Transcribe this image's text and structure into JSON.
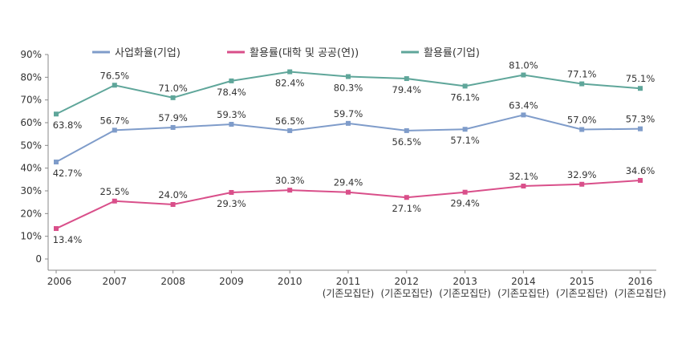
{
  "chart_data": {
    "type": "line",
    "title": "",
    "xlabel": "",
    "ylabel": "",
    "ylim": [
      0,
      90
    ],
    "y_ticks": [
      "0",
      "10%",
      "20%",
      "30%",
      "40%",
      "50%",
      "60%",
      "70%",
      "80%",
      "90%"
    ],
    "grid": false,
    "legend_position": "top",
    "categories": [
      "2006",
      "2007",
      "2008",
      "2009",
      "2010",
      "2011",
      "2012",
      "2013",
      "2014",
      "2015",
      "2016"
    ],
    "category_sublabels": [
      "",
      "",
      "",
      "",
      "",
      "(기존모집단)",
      "(기존모집단)",
      "(기존모집단)",
      "(기존모집단)",
      "(기존모집단)",
      "(기존모집단)"
    ],
    "series": [
      {
        "name": "사업화율(기업)",
        "color": "#7f9cca",
        "values": [
          42.7,
          56.7,
          57.9,
          59.3,
          56.5,
          59.7,
          56.5,
          57.1,
          63.4,
          57.0,
          57.3
        ],
        "labels": [
          "42.7%",
          "56.7%",
          "57.9%",
          "59.3%",
          "56.5%",
          "59.7%",
          "56.5%",
          "57.1%",
          "63.4%",
          "57.0%",
          "57.3%"
        ]
      },
      {
        "name": "활용률(대학 및 공공(연))",
        "color": "#d94f8a",
        "values": [
          13.4,
          25.5,
          24.0,
          29.3,
          30.3,
          29.4,
          27.1,
          29.4,
          32.1,
          32.9,
          34.6
        ],
        "labels": [
          "13.4%",
          "25.5%",
          "24.0%",
          "29.3%",
          "30.3%",
          "29.4%",
          "27.1%",
          "29.4%",
          "32.1%",
          "32.9%",
          "34.6%"
        ]
      },
      {
        "name": "활용률(기업)",
        "color": "#5fa69a",
        "values": [
          63.8,
          76.5,
          71.0,
          78.4,
          82.4,
          80.3,
          79.4,
          76.1,
          81.0,
          77.1,
          75.1
        ],
        "labels": [
          "63.8%",
          "76.5%",
          "71.0%",
          "78.4%",
          "82.4%",
          "80.3%",
          "79.4%",
          "76.1%",
          "81.0%",
          "77.1%",
          "75.1%"
        ]
      }
    ]
  }
}
